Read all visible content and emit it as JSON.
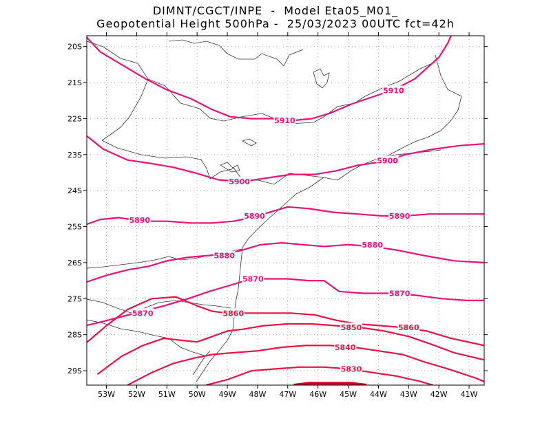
{
  "title": {
    "line1": "DIMNT/CGCT/INPE  -  Model Eta05_M01_",
    "line2": "Geopotential Height 500hPa -  25/03/2023 00UTC fct=42h"
  },
  "map": {
    "lon_range": [
      -53.65,
      -40.5
    ],
    "lat_range": [
      -29.4,
      -19.7
    ],
    "lon_ticks": [
      {
        "value": -53,
        "label": "53W"
      },
      {
        "value": -52,
        "label": "52W"
      },
      {
        "value": -51,
        "label": "51W"
      },
      {
        "value": -50,
        "label": "50W"
      },
      {
        "value": -49,
        "label": "49W"
      },
      {
        "value": -48,
        "label": "48W"
      },
      {
        "value": -47,
        "label": "47W"
      },
      {
        "value": -46,
        "label": "46W"
      },
      {
        "value": -45,
        "label": "45W"
      },
      {
        "value": -44,
        "label": "44W"
      },
      {
        "value": -43,
        "label": "43W"
      },
      {
        "value": -42,
        "label": "42W"
      },
      {
        "value": -41,
        "label": "41W"
      }
    ],
    "lat_ticks": [
      {
        "value": -20,
        "label": "20S"
      },
      {
        "value": -21,
        "label": "21S"
      },
      {
        "value": -22,
        "label": "22S"
      },
      {
        "value": -23,
        "label": "23S"
      },
      {
        "value": -24,
        "label": "24S"
      },
      {
        "value": -25,
        "label": "25S"
      },
      {
        "value": -26,
        "label": "26S"
      },
      {
        "value": -27,
        "label": "27S"
      },
      {
        "value": -28,
        "label": "28S"
      },
      {
        "value": -29,
        "label": "29S"
      }
    ],
    "grid": "dotted",
    "colors": {
      "high_contours": "#ee1177",
      "low_contours": "#ee1144",
      "lowest_contour": "#cc0022",
      "coastline": "#333333",
      "grid": "#aaaaaa"
    }
  },
  "chart_data": {
    "type": "contour",
    "variable": "Geopotential Height 500hPa",
    "contours": [
      {
        "value": 5910,
        "label": "5910",
        "points": [
          [
            -53.7,
            -19.7
          ],
          [
            -53.2,
            -20.15
          ],
          [
            -52.5,
            -20.5
          ],
          [
            -51.7,
            -20.9
          ],
          [
            -51.0,
            -21.2
          ],
          [
            -50.2,
            -21.45
          ],
          [
            -49.5,
            -21.75
          ],
          [
            -48.9,
            -21.95
          ],
          [
            -48.2,
            -22.0
          ],
          [
            -47.5,
            -22.0
          ],
          [
            -46.8,
            -22.05
          ],
          [
            -46.2,
            -22.0
          ],
          [
            -45.6,
            -21.85
          ],
          [
            -44.9,
            -21.6
          ],
          [
            -44.2,
            -21.4
          ],
          [
            -43.5,
            -21.2
          ],
          [
            -42.8,
            -20.9
          ],
          [
            -42.0,
            -20.3
          ],
          [
            -41.7,
            -19.9
          ],
          [
            -41.6,
            -19.7
          ]
        ],
        "labels": [
          [
            -47.1,
            -22.05
          ],
          [
            -43.5,
            -21.22
          ]
        ]
      },
      {
        "value": 5900,
        "label": "5900",
        "points": [
          [
            -53.7,
            -22.45
          ],
          [
            -53.1,
            -22.85
          ],
          [
            -52.3,
            -23.15
          ],
          [
            -51.5,
            -23.25
          ],
          [
            -50.8,
            -23.35
          ],
          [
            -50.1,
            -23.5
          ],
          [
            -49.3,
            -23.7
          ],
          [
            -48.5,
            -23.75
          ],
          [
            -47.7,
            -23.65
          ],
          [
            -46.9,
            -23.55
          ],
          [
            -46.1,
            -23.55
          ],
          [
            -45.4,
            -23.45
          ],
          [
            -44.7,
            -23.3
          ],
          [
            -43.9,
            -23.2
          ],
          [
            -43.1,
            -23.0
          ],
          [
            -42.2,
            -22.85
          ],
          [
            -41.3,
            -22.75
          ],
          [
            -40.5,
            -22.7
          ]
        ],
        "labels": [
          [
            -48.6,
            -23.75
          ],
          [
            -43.7,
            -23.17
          ]
        ]
      },
      {
        "value": 5890,
        "label": "5890",
        "points": [
          [
            -53.7,
            -24.95
          ],
          [
            -53.2,
            -24.8
          ],
          [
            -52.6,
            -24.75
          ],
          [
            -51.8,
            -24.85
          ],
          [
            -51.0,
            -24.85
          ],
          [
            -50.2,
            -24.9
          ],
          [
            -49.5,
            -24.9
          ],
          [
            -48.8,
            -24.85
          ],
          [
            -48.2,
            -24.75
          ],
          [
            -47.6,
            -24.6
          ],
          [
            -47.0,
            -24.45
          ],
          [
            -46.3,
            -24.5
          ],
          [
            -45.5,
            -24.6
          ],
          [
            -44.7,
            -24.65
          ],
          [
            -43.9,
            -24.7
          ],
          [
            -43.1,
            -24.7
          ],
          [
            -42.3,
            -24.65
          ],
          [
            -41.5,
            -24.65
          ],
          [
            -40.5,
            -24.65
          ]
        ],
        "labels": [
          [
            -51.9,
            -24.82
          ],
          [
            -48.1,
            -24.7
          ],
          [
            -43.3,
            -24.7
          ]
        ]
      },
      {
        "value": 5880,
        "label": "5880",
        "points": [
          [
            -53.7,
            -26.55
          ],
          [
            -53.0,
            -26.35
          ],
          [
            -52.3,
            -26.2
          ],
          [
            -51.6,
            -26.1
          ],
          [
            -51.0,
            -25.95
          ],
          [
            -50.3,
            -25.85
          ],
          [
            -49.6,
            -25.8
          ],
          [
            -49.0,
            -25.75
          ],
          [
            -48.5,
            -25.65
          ],
          [
            -47.9,
            -25.5
          ],
          [
            -47.2,
            -25.45
          ],
          [
            -46.5,
            -25.5
          ],
          [
            -45.8,
            -25.55
          ],
          [
            -45.0,
            -25.5
          ],
          [
            -44.2,
            -25.55
          ],
          [
            -43.4,
            -25.65
          ],
          [
            -42.5,
            -25.8
          ],
          [
            -41.5,
            -25.95
          ],
          [
            -40.5,
            -26.0
          ]
        ],
        "labels": [
          [
            -49.1,
            -25.8
          ],
          [
            -44.2,
            -25.5
          ]
        ]
      },
      {
        "value": 5870,
        "label": "5870",
        "points": [
          [
            -53.7,
            -27.75
          ],
          [
            -53.2,
            -27.65
          ],
          [
            -52.5,
            -27.5
          ],
          [
            -51.8,
            -27.35
          ],
          [
            -51.1,
            -27.2
          ],
          [
            -50.3,
            -27.0
          ],
          [
            -49.6,
            -26.8
          ],
          [
            -49.0,
            -26.65
          ],
          [
            -48.4,
            -26.5
          ],
          [
            -47.8,
            -26.45
          ],
          [
            -47.0,
            -26.45
          ],
          [
            -46.3,
            -26.5
          ],
          [
            -45.8,
            -26.5
          ],
          [
            -45.3,
            -26.8
          ],
          [
            -44.5,
            -26.85
          ],
          [
            -43.6,
            -26.85
          ],
          [
            -42.8,
            -26.9
          ],
          [
            -41.9,
            -27.0
          ],
          [
            -41.1,
            -27.05
          ],
          [
            -40.5,
            -27.05
          ]
        ],
        "labels": [
          [
            -51.8,
            -27.4
          ],
          [
            -48.15,
            -26.45
          ],
          [
            -43.3,
            -26.85
          ]
        ]
      },
      {
        "value": 5860,
        "label": "5860",
        "points": [
          [
            -53.7,
            -28.25
          ],
          [
            -53.0,
            -27.75
          ],
          [
            -52.3,
            -27.3
          ],
          [
            -51.5,
            -27.0
          ],
          [
            -50.7,
            -26.95
          ],
          [
            -50.0,
            -27.2
          ],
          [
            -49.5,
            -27.35
          ],
          [
            -49.0,
            -27.4
          ],
          [
            -48.4,
            -27.4
          ],
          [
            -47.7,
            -27.4
          ],
          [
            -46.9,
            -27.4
          ],
          [
            -46.1,
            -27.45
          ],
          [
            -45.4,
            -27.6
          ],
          [
            -44.7,
            -27.7
          ],
          [
            -43.9,
            -27.75
          ],
          [
            -43.2,
            -27.8
          ],
          [
            -42.4,
            -27.9
          ],
          [
            -41.6,
            -28.1
          ],
          [
            -40.5,
            -28.3
          ]
        ],
        "labels": [
          [
            -48.8,
            -27.4
          ],
          [
            -43.0,
            -27.8
          ]
        ]
      },
      {
        "value": 5850,
        "label": "5850",
        "points": [
          [
            -53.3,
            -29.1
          ],
          [
            -52.5,
            -28.6
          ],
          [
            -51.8,
            -28.3
          ],
          [
            -51.1,
            -28.1
          ],
          [
            -50.6,
            -28.15
          ],
          [
            -50.0,
            -28.2
          ],
          [
            -49.5,
            -28.05
          ],
          [
            -49.0,
            -27.9
          ],
          [
            -48.5,
            -27.85
          ],
          [
            -47.8,
            -27.75
          ],
          [
            -47.0,
            -27.7
          ],
          [
            -46.2,
            -27.7
          ],
          [
            -45.4,
            -27.75
          ],
          [
            -44.6,
            -27.8
          ],
          [
            -43.8,
            -27.9
          ],
          [
            -43.0,
            -28.05
          ],
          [
            -42.3,
            -28.25
          ],
          [
            -41.5,
            -28.5
          ],
          [
            -40.5,
            -28.7
          ]
        ],
        "labels": [
          [
            -44.9,
            -27.8
          ]
        ]
      },
      {
        "value": 5840,
        "label": "5840",
        "points": [
          [
            -52.3,
            -29.4
          ],
          [
            -51.5,
            -29.05
          ],
          [
            -50.8,
            -28.8
          ],
          [
            -50.1,
            -28.65
          ],
          [
            -49.5,
            -28.55
          ],
          [
            -48.8,
            -28.5
          ],
          [
            -48.0,
            -28.45
          ],
          [
            -47.2,
            -28.35
          ],
          [
            -46.4,
            -28.3
          ],
          [
            -45.6,
            -28.3
          ],
          [
            -44.8,
            -28.35
          ],
          [
            -44.0,
            -28.45
          ],
          [
            -43.2,
            -28.55
          ],
          [
            -42.5,
            -28.75
          ],
          [
            -41.7,
            -28.95
          ],
          [
            -40.8,
            -29.2
          ],
          [
            -40.5,
            -29.3
          ]
        ],
        "labels": [
          [
            -45.1,
            -28.35
          ]
        ]
      },
      {
        "value": 5830,
        "label": "5830",
        "points": [
          [
            -49.7,
            -29.4
          ],
          [
            -49.0,
            -29.25
          ],
          [
            -48.2,
            -29.0
          ],
          [
            -47.4,
            -28.95
          ],
          [
            -46.6,
            -28.9
          ],
          [
            -45.8,
            -28.9
          ],
          [
            -45.0,
            -28.95
          ],
          [
            -44.2,
            -29.05
          ],
          [
            -43.4,
            -29.15
          ],
          [
            -42.6,
            -29.3
          ],
          [
            -42.2,
            -29.4
          ]
        ],
        "labels": [
          [
            -44.9,
            -28.95
          ]
        ]
      },
      {
        "value": 5820,
        "label": "",
        "points": [
          [
            -46.8,
            -29.4
          ],
          [
            -46.3,
            -29.35
          ],
          [
            -45.6,
            -29.35
          ],
          [
            -44.9,
            -29.35
          ],
          [
            -44.4,
            -29.4
          ]
        ],
        "labels": []
      }
    ]
  }
}
